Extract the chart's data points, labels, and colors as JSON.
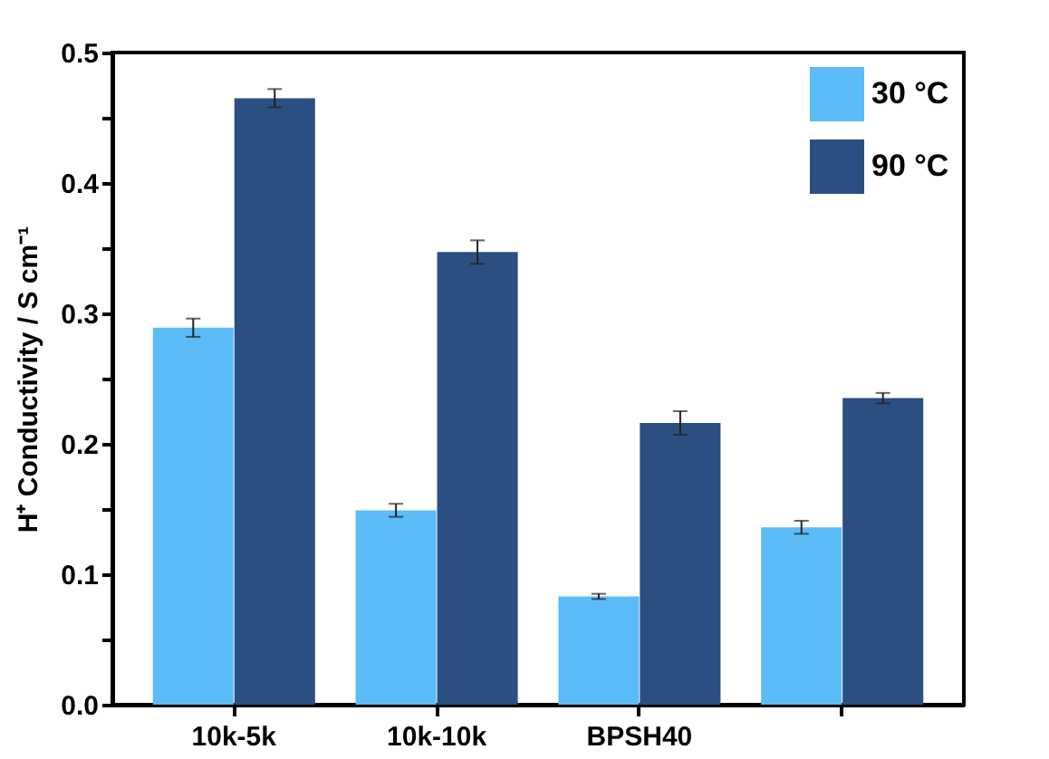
{
  "chart_data": {
    "type": "bar",
    "ylabel": "H⁺ Conductivity / S cm⁻¹",
    "categories": [
      "10k-5k",
      "10k-10k",
      "BPSH40",
      null
    ],
    "series": [
      {
        "name": "30 °C",
        "color": "#5bbcf8",
        "values": [
          0.289,
          0.149,
          0.083,
          0.136
        ],
        "errors": [
          0.007,
          0.005,
          0.002,
          0.005
        ]
      },
      {
        "name": "90 °C",
        "color": "#2c4f82",
        "values": [
          0.465,
          0.347,
          0.216,
          0.235
        ],
        "errors": [
          0.007,
          0.009,
          0.009,
          0.004
        ]
      }
    ],
    "ylim": [
      0,
      0.5
    ],
    "yticks": [
      {
        "value": 0,
        "label": "0.0"
      },
      {
        "value": 0.05,
        "label": null
      },
      0.1,
      {
        "value": 0.15,
        "label": null
      },
      0.2,
      {
        "value": 0.25,
        "label": null
      },
      0.3,
      {
        "value": 0.35,
        "label": null
      },
      0.4,
      {
        "value": 0.45,
        "label": null
      },
      0.5
    ],
    "grid": false,
    "legend": "top right"
  }
}
